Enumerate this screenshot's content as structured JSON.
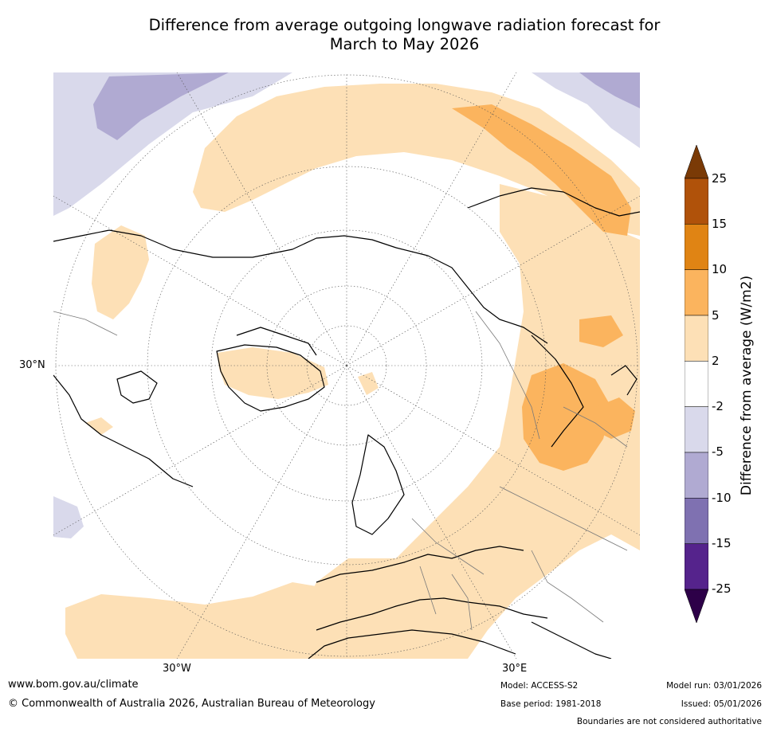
{
  "title": {
    "line1": "Difference from average outgoing longwave radiation forecast for",
    "line2": "March to May 2026"
  },
  "map": {
    "projection": "north-polar-stereographic",
    "lat_label": "30°N",
    "lon_labels": [
      "30°W",
      "30°E"
    ]
  },
  "colorbar": {
    "label": "Difference from average (W/m2)",
    "ticks": [
      "25",
      "15",
      "10",
      "5",
      "2",
      "-2",
      "-5",
      "-10",
      "-15",
      "-25"
    ],
    "colors": [
      "#7a3a06",
      "#b0520a",
      "#e08414",
      "#fbb45e",
      "#fde0b6",
      "#ffffff",
      "#d9d9eb",
      "#b0aad2",
      "#7f71b1",
      "#55238c",
      "#2d0048"
    ]
  },
  "footer": {
    "url": "www.bom.gov.au/climate",
    "copyright": "© Commonwealth of Australia 2026, Australian Bureau of Meteorology",
    "model": "Model: ACCESS-S2",
    "base_period": "Base period: 1981-2018",
    "model_run": "Model run: 03/01/2026",
    "issued": "Issued: 05/01/2026",
    "disclaimer": "Boundaries are not considered authoritative"
  }
}
